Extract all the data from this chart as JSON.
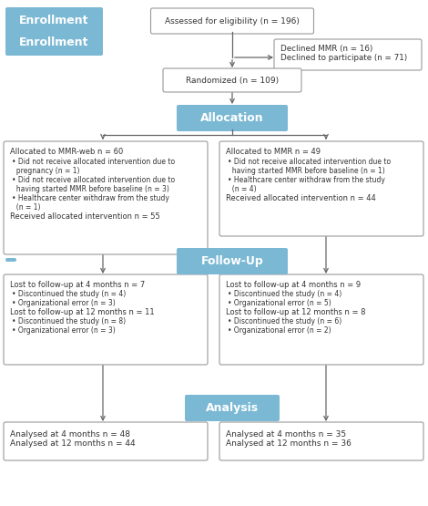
{
  "bg_color": "#ffffff",
  "blue_box_color": "#7ab8d4",
  "blue_box_text_color": "#ffffff",
  "white_box_color": "#ffffff",
  "white_box_border_color": "#999999",
  "text_color": "#333333",
  "arrow_color": "#666666",
  "enrollment_label": "Enrollment",
  "allocation_label": "Allocation",
  "followup_label": "Follow-Up",
  "analysis_label": "Analysis",
  "eligibility_text": "Assessed for eligibility (n = 196)",
  "excluded_text": "Declined MMR (n = 16)\nDeclined to participate (n = 71)",
  "randomized_text": "Randomized (n = 109)",
  "alloc_left_line1": "Allocated to MMR-web n = 60",
  "alloc_left_bullets": [
    "Did not receive allocated intervention due to\n  pregnancy (n = 1)",
    "Did not receive allocated intervention due to\n  having started MMR before baseline (n = 3)",
    "Healthcare center withdraw from the study\n  (n = 1)"
  ],
  "alloc_left_last": "Received allocated intervention n = 55",
  "alloc_right_line1": "Allocated to MMR n = 49",
  "alloc_right_bullets": [
    "Did not receive allocated intervention due to\n  having started MMR before baseline (n = 1)",
    "Healthcare center withdraw from the study\n  (n = 4)"
  ],
  "alloc_right_last": "Received allocated intervention n = 44",
  "followup_left_line1": "Lost to follow-up at 4 months n = 7",
  "followup_left_bullets1": [
    "Discontinued the study (n = 4)",
    "Organizational error (n = 3)"
  ],
  "followup_left_line2": "Lost to follow-up at 12 months n = 11",
  "followup_left_bullets2": [
    "Discontinued the study (n = 8)",
    "Organizational error (n = 3)"
  ],
  "followup_right_line1": "Lost to follow-up at 4 months n = 9",
  "followup_right_bullets1": [
    "Discontinued the study (n = 4)",
    "Organizational error (n = 5)"
  ],
  "followup_right_line2": "Lost to follow-up at 12 months n = 8",
  "followup_right_bullets2": [
    "Discontinued the study (n = 6)",
    "Organizational error (n = 2)"
  ],
  "analysis_left_text": "Analysed at 4 months n = 48\nAnalysed at 12 months n = 44",
  "analysis_right_text": "Analysed at 4 months n = 35\nAnalysed at 12 months n = 36"
}
